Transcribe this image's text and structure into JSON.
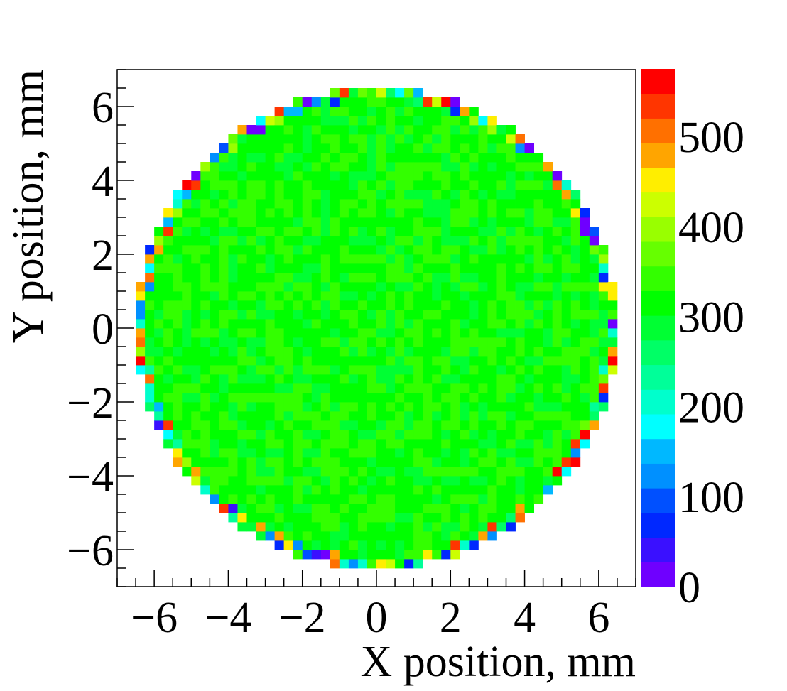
{
  "chart_data": {
    "type": "heatmap",
    "title": "",
    "xlabel": "X position, mm",
    "ylabel": "Y position, mm",
    "xlim": [
      -7,
      7
    ],
    "ylim": [
      -7,
      7
    ],
    "xticks": [
      -6,
      -4,
      -2,
      0,
      2,
      4,
      6
    ],
    "yticks": [
      -6,
      -4,
      -2,
      0,
      2,
      4,
      6
    ],
    "xtick_labels": [
      "−6",
      "−4",
      "−2",
      "0",
      "2",
      "4",
      "6"
    ],
    "ytick_labels": [
      "−6",
      "−4",
      "−2",
      "0",
      "2",
      "4",
      "6"
    ],
    "bin_width_mm": 0.25,
    "disk_radius_mm": 6.5,
    "bulk_counts": [
      290,
      350
    ],
    "rim_counts": [
      0,
      570
    ],
    "colorbar": {
      "zlim": [
        0,
        575
      ],
      "ticks": [
        0,
        100,
        200,
        300,
        400,
        500
      ],
      "tick_labels": [
        "0",
        "100",
        "200",
        "300",
        "400",
        "500"
      ],
      "palette": [
        "#6f00ff",
        "#3a10ff",
        "#0028ff",
        "#0050ff",
        "#0090ff",
        "#00b8ff",
        "#00ffff",
        "#00ffcc",
        "#00ff99",
        "#00ff66",
        "#00ff33",
        "#00ff00",
        "#33ff00",
        "#66ff00",
        "#99ff00",
        "#ccff00",
        "#ffee00",
        "#ffa500",
        "#ff7000",
        "#ff3500",
        "#ff0000"
      ]
    },
    "grid": false,
    "legend": "none"
  }
}
